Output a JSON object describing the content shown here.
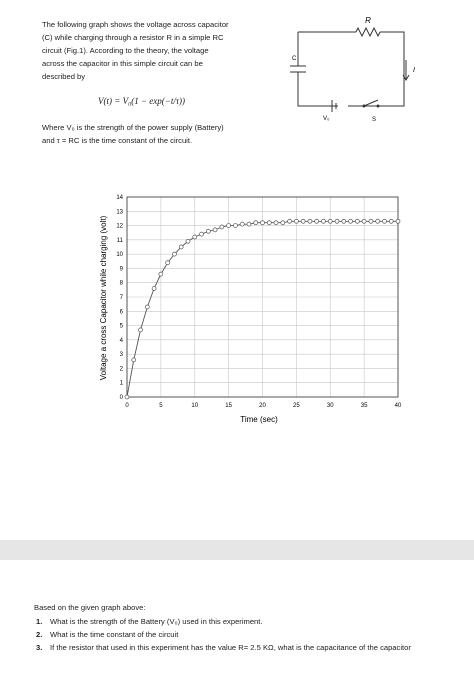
{
  "intro": {
    "lines": [
      "The following graph shows the voltage across capacitor",
      "(C) while charging through a resistor R in a simple RC",
      "circuit (Fig.1). According to the theory, the voltage",
      "across the capacitor in this simple circuit can be",
      "described by"
    ],
    "formula": "V(t) = V₀(1 − exp(−t/τ))",
    "where": [
      "Where V₀ is the strength of the power supply (Battery)",
      "and τ = RC is the time constant of the circuit."
    ]
  },
  "circuit": {
    "resistor": "R",
    "capacitor": "C",
    "current": "I",
    "battery": "V₀",
    "switch": "S"
  },
  "graph": {
    "type": "line",
    "x_label": "Time (sec)",
    "y_label": "Voltage a cross Capacitor while charging (volt)",
    "xlim": [
      0,
      40
    ],
    "xticks": [
      0,
      5,
      10,
      15,
      20,
      25,
      30,
      35,
      40
    ],
    "ylim": [
      0,
      14
    ],
    "yticks": [
      0,
      1,
      2,
      3,
      4,
      5,
      6,
      7,
      8,
      9,
      10,
      11,
      12,
      13,
      14
    ],
    "grid": true,
    "series": [
      {
        "color": "#555555",
        "x": [
          0,
          1,
          2,
          3,
          4,
          5,
          6,
          7,
          8,
          9,
          10,
          11,
          12,
          13,
          14,
          15,
          16,
          17,
          18,
          19,
          20,
          21,
          22,
          23,
          24,
          25,
          26,
          27,
          28,
          29,
          30,
          31,
          32,
          33,
          34,
          35,
          36,
          37,
          38,
          39,
          40
        ],
        "values": [
          0,
          2.6,
          4.7,
          6.3,
          7.6,
          8.6,
          9.4,
          10.0,
          10.5,
          10.9,
          11.2,
          11.4,
          11.6,
          11.7,
          11.9,
          12.0,
          12.0,
          12.1,
          12.1,
          12.2,
          12.2,
          12.2,
          12.2,
          12.2,
          12.3,
          12.3,
          12.3,
          12.3,
          12.3,
          12.3,
          12.3,
          12.3,
          12.3,
          12.3,
          12.3,
          12.3,
          12.3,
          12.3,
          12.3,
          12.3,
          12.3
        ]
      }
    ]
  },
  "questions": {
    "heading": "Based on the given graph above:",
    "items": [
      {
        "number": "1.",
        "text": "What is the strength of the Battery (V₀) used in this experiment."
      },
      {
        "number": "2.",
        "text": "What is the time constant of the circuit"
      },
      {
        "number": "3.",
        "text": "If the resistor that used in this experiment has the value R= 2.5 KΩ, what is the capacitance of the capacitor"
      }
    ]
  }
}
